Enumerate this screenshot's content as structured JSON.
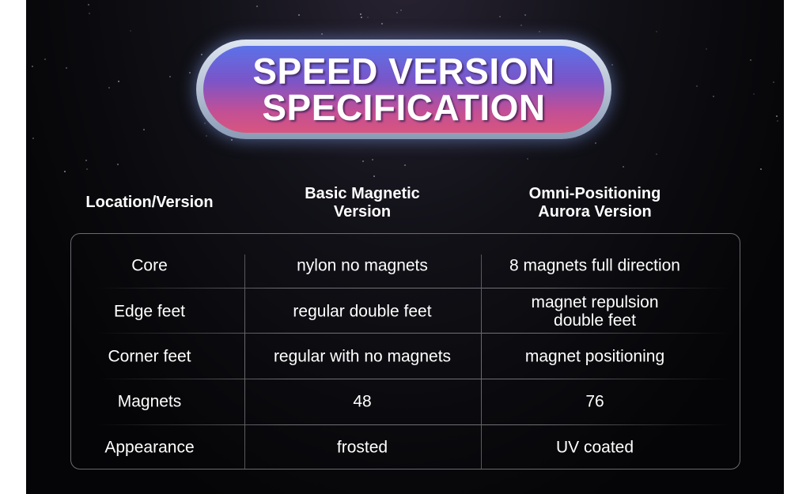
{
  "title": {
    "line1": "SPEED VERSION",
    "line2": "SPECIFICATION"
  },
  "table": {
    "headers": [
      "Location/Version",
      "Basic Magnetic Version",
      "Omni-Positioning Aurora Version"
    ],
    "header_lines": [
      [
        "Location/Version"
      ],
      [
        "Basic Magnetic",
        "Version"
      ],
      [
        "Omni-Positioning",
        "Aurora Version"
      ]
    ],
    "rows": [
      [
        [
          "Core"
        ],
        [
          "nylon no magnets"
        ],
        [
          "8 magnets full direction"
        ]
      ],
      [
        [
          "Edge feet"
        ],
        [
          "regular double feet"
        ],
        [
          "magnet repulsion",
          "double feet"
        ]
      ],
      [
        [
          "Corner feet"
        ],
        [
          "regular with no magnets"
        ],
        [
          "magnet positioning"
        ]
      ],
      [
        [
          "Magnets"
        ],
        [
          "48"
        ],
        [
          "76"
        ]
      ],
      [
        [
          "Appearance"
        ],
        [
          "frosted"
        ],
        [
          "UV coated"
        ]
      ]
    ]
  },
  "colors": {
    "background": "#0a0a0e",
    "pill_top": "#5b72e8",
    "pill_bottom": "#d8557f",
    "text": "#ffffff"
  }
}
